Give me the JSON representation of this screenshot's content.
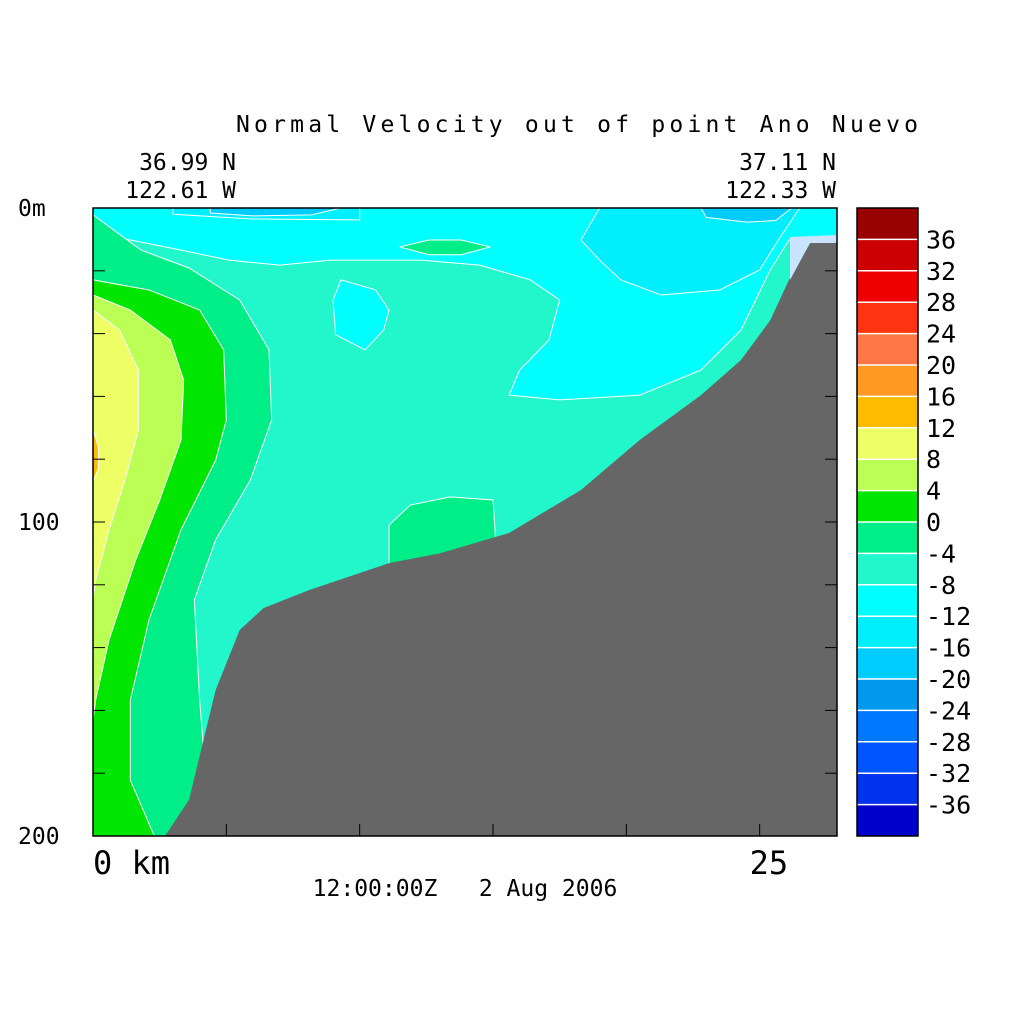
{
  "chart_data": {
    "type": "contour",
    "title": "Normal Velocity out of point Ano Nuevo",
    "start_lat": "36.99 N",
    "start_lon": "122.61 W",
    "end_lat": "37.11 N",
    "end_lon": "122.33 W",
    "time": "12:00:00Z   2 Aug 2006",
    "xlim": [
      0,
      27.9
    ],
    "ylim": [
      0,
      200
    ],
    "xticks": [
      {
        "value": 0,
        "label": "0 km"
      },
      25
    ],
    "x_minor_ticks": [
      5,
      10,
      15,
      20
    ],
    "yticks": [
      {
        "value": 0,
        "label": "0m"
      },
      100,
      200
    ],
    "y_minor_ticks": [
      20,
      40,
      60,
      80,
      120,
      140,
      160,
      180
    ],
    "colorbar": {
      "levels": [
        -40,
        -36,
        -32,
        -28,
        -24,
        -20,
        -16,
        -12,
        -8,
        -4,
        0,
        4,
        8,
        12,
        16,
        20,
        24,
        28,
        32,
        36,
        40
      ],
      "colors": [
        "#0000cc",
        "#0033ee",
        "#0055ff",
        "#0077ff",
        "#0099ee",
        "#00ccff",
        "#00eeff",
        "#00ffff",
        "#22f7cc",
        "#00ee88",
        "#00e600",
        "#bbff55",
        "#eeff66",
        "#ffbb00",
        "#ff9922",
        "#ff7744",
        "#ff3311",
        "#ee0000",
        "#cc0000",
        "#990000"
      ]
    },
    "background_level": -8,
    "regions": [
      {
        "level": -12,
        "km": [
          0,
          27.9,
          27.9,
          26.1,
          25.4,
          24.3,
          22.8,
          20.5,
          17.5,
          15.6,
          16.0,
          17.1,
          17.5,
          16.4,
          14.5,
          12.3,
          10.8,
          8.9,
          7.0,
          5.1,
          3.3,
          1.4,
          0
        ],
        "m": [
          0,
          0,
          10.2,
          10.2,
          19.7,
          38.9,
          51.6,
          59.6,
          61.1,
          59.6,
          51.6,
          42,
          29.3,
          22.9,
          18.2,
          16.6,
          16.6,
          16.6,
          18.2,
          16.6,
          13.4,
          10.2,
          8.6
        ]
      },
      {
        "level": -12,
        "km": [
          9.3,
          10.6,
          11.1,
          10.9,
          10.2,
          9.1,
          9.0
        ],
        "m": [
          22.9,
          26.1,
          32.5,
          38.9,
          45.2,
          40.4,
          29.3
        ]
      },
      {
        "level": -16,
        "km": [
          19.0,
          26.5,
          25.7,
          25.0,
          23.5,
          21.3,
          19.8,
          19.0,
          18.3
        ],
        "m": [
          0,
          0,
          10.2,
          19.7,
          26.1,
          27.7,
          22.9,
          16.6,
          10.2
        ]
      },
      {
        "level": -16,
        "km": [
          3.0,
          10,
          10,
          6,
          3
        ],
        "m": [
          0,
          0,
          3.8,
          3.5,
          2
        ]
      },
      {
        "level": -20,
        "km": [
          22.8,
          26.2,
          25.6,
          24.5,
          23
        ],
        "m": [
          0,
          0,
          4,
          4.5,
          3
        ]
      },
      {
        "level": -20,
        "km": [
          4.4,
          9.3,
          8.2,
          6,
          4.4
        ],
        "m": [
          0,
          0,
          2.2,
          2.5,
          1.6
        ]
      },
      {
        "level": -4,
        "km": [
          0,
          1.8,
          3.6,
          5.5,
          6.6,
          6.7,
          5.9,
          4.6,
          3.8,
          4.0,
          4.4,
          0
        ],
        "m": [
          2.2,
          13.4,
          19.1,
          29.3,
          45.2,
          67.5,
          86.6,
          105.7,
          124.8,
          156.7,
          200,
          200
        ]
      },
      {
        "level": 0,
        "km": [
          0,
          2.1,
          4.0,
          4.9,
          5.0,
          4.6,
          3.3,
          2.1,
          1.4,
          1.4,
          2.3,
          0
        ],
        "m": [
          22.9,
          26.1,
          32.5,
          45.2,
          67.5,
          80.3,
          102.5,
          131.2,
          156.7,
          182.2,
          200,
          200
        ]
      },
      {
        "level": 4,
        "km": [
          0,
          1.4,
          2.9,
          3.4,
          3.3,
          2.5,
          1.6,
          0.6,
          0.1,
          0
        ],
        "m": [
          27.7,
          32.5,
          42,
          54.8,
          73.9,
          93,
          112.1,
          137.6,
          156.7,
          163
        ]
      },
      {
        "level": 8,
        "km": [
          0,
          1.0,
          1.7,
          1.7,
          1.2,
          0.6,
          0.1,
          0
        ],
        "m": [
          32.5,
          38.9,
          51.6,
          70.7,
          86.6,
          102.5,
          118.5,
          124.8
        ]
      },
      {
        "level": 12,
        "km": [
          0,
          0.2,
          0.2,
          0
        ],
        "m": [
          70.7,
          76,
          83,
          87
        ]
      },
      {
        "level": -4,
        "km": [
          11.1,
          11.1,
          11.9,
          13.4,
          15.0,
          15.1,
          13.9,
          12.4
        ],
        "m": [
          113.7,
          101,
          94.6,
          92,
          93,
          105.7,
          108.9,
          112.1
        ]
      },
      {
        "level": -4,
        "km": [
          11.5,
          12.6,
          13.8,
          14.9,
          13.8,
          12.6
        ],
        "m": [
          12.4,
          10.2,
          10.2,
          12.4,
          14.9,
          14.9
        ]
      }
    ],
    "seafloor": {
      "color": "#666666",
      "km": [
        2.7,
        3.6,
        4.6,
        5.5,
        6.4,
        8.1,
        11.1,
        13.0,
        15.6,
        18.3,
        20.5,
        22.8,
        24.3,
        25.4,
        26.1,
        26.9,
        27.9
      ],
      "m": [
        200,
        188.5,
        153.5,
        134.4,
        127.4,
        121.7,
        113.1,
        110,
        103.5,
        89.8,
        73.9,
        59.6,
        48.4,
        35.7,
        22.9,
        11.1,
        10.2
      ]
    }
  }
}
